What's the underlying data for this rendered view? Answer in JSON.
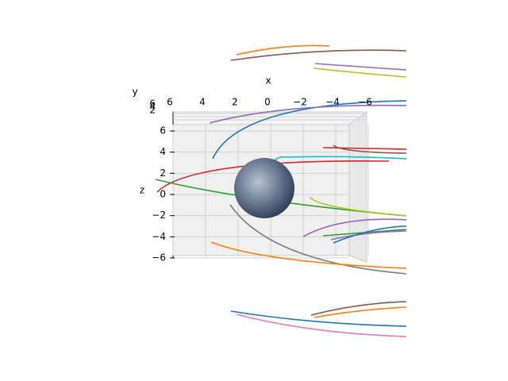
{
  "chart_data": {
    "type": "line3d",
    "xlabel": "x",
    "ylabel": "y",
    "zlabel": "z",
    "xlim": [
      6,
      -6
    ],
    "xticks": [
      6,
      4,
      2,
      0,
      {
        "value": -2,
        "label": "−2"
      },
      {
        "value": -4,
        "label": "−4"
      },
      {
        "value": -6,
        "label": "−6"
      }
    ],
    "ylim": [
      6,
      0
    ],
    "yticks": [
      6,
      4,
      2
    ],
    "zlim": [
      -6,
      6
    ],
    "zticks": [
      {
        "value": -6,
        "label": "−6"
      },
      {
        "value": -4,
        "label": "−4"
      },
      {
        "value": -2,
        "label": "−2"
      },
      0,
      2,
      4,
      6
    ],
    "grid": true
  }
}
